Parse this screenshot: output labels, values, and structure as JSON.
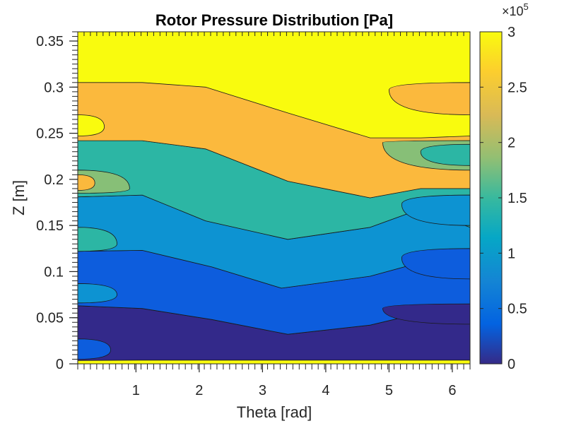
{
  "chart_data": {
    "type": "contour",
    "title": "Rotor Pressure Distribution [Pa]",
    "xlabel": "Theta [rad]",
    "ylabel": "Z [m]",
    "xlim": [
      0.08,
      6.28
    ],
    "ylim": [
      0,
      0.36
    ],
    "xticks": [
      1,
      2,
      3,
      4,
      5,
      6
    ],
    "xtick_labels": [
      "1",
      "2",
      "3",
      "4",
      "5",
      "6"
    ],
    "yticks": [
      0,
      0.05,
      0.1,
      0.15,
      0.2,
      0.25,
      0.3,
      0.35
    ],
    "ytick_labels": [
      "0",
      "0.05",
      "0.1",
      "0.15",
      "0.2",
      "0.25",
      "0.3",
      "0.35"
    ],
    "colorbar": {
      "range": [
        0,
        300000
      ],
      "ticks": [
        0,
        50000,
        100000,
        150000,
        200000,
        250000,
        300000
      ],
      "tick_labels": [
        "0",
        "0.5",
        "1",
        "1.5",
        "2",
        "2.5",
        "3"
      ],
      "exponent_label": "×10",
      "exponent_power": "5",
      "colormap": "parula"
    },
    "levels": [
      0,
      50000,
      100000,
      150000,
      200000,
      250000,
      300000
    ],
    "level_colors": [
      "#352a87",
      "#0f5cdd",
      "#1481d6",
      "#06a4ca",
      "#2eb7a4",
      "#87bf77",
      "#d1bb59",
      "#fec832",
      "#f9fb0e"
    ],
    "bands": [
      {
        "name": "band-0",
        "color": "#33298a",
        "points": [
          [
            0.08,
            0.0035
          ],
          [
            1.05,
            0.004
          ],
          [
            2,
            0.004
          ],
          [
            3,
            0.004
          ],
          [
            4,
            0.004
          ],
          [
            5,
            0.004
          ],
          [
            6.28,
            0.004
          ],
          [
            6.28,
            0.045
          ],
          [
            5.5,
            0.055
          ],
          [
            4.7,
            0.042
          ],
          [
            3.4,
            0.032
          ],
          [
            2.2,
            0.048
          ],
          [
            1.1,
            0.06
          ],
          [
            0.08,
            0.063
          ]
        ]
      },
      {
        "name": "band-1",
        "color": "#0d5ddd",
        "points": [
          [
            0.08,
            0.063
          ],
          [
            1.1,
            0.06
          ],
          [
            2.2,
            0.048
          ],
          [
            3.4,
            0.032
          ],
          [
            4.7,
            0.042
          ],
          [
            5.5,
            0.055
          ],
          [
            6.28,
            0.045
          ],
          [
            6.28,
            0.092
          ],
          [
            5.5,
            0.11
          ],
          [
            4.7,
            0.095
          ],
          [
            3.3,
            0.082
          ],
          [
            2.2,
            0.105
          ],
          [
            1.1,
            0.123
          ],
          [
            0.08,
            0.122
          ]
        ]
      },
      {
        "name": "band-2",
        "color": "#0d93d2",
        "points": [
          [
            0.08,
            0.122
          ],
          [
            1.1,
            0.123
          ],
          [
            2.2,
            0.105
          ],
          [
            3.3,
            0.082
          ],
          [
            4.7,
            0.095
          ],
          [
            5.5,
            0.11
          ],
          [
            6.28,
            0.092
          ],
          [
            6.28,
            0.148
          ],
          [
            5.5,
            0.168
          ],
          [
            4.7,
            0.148
          ],
          [
            3.4,
            0.135
          ],
          [
            2.1,
            0.155
          ],
          [
            1.1,
            0.183
          ],
          [
            0.08,
            0.181
          ]
        ]
      },
      {
        "name": "band-3",
        "color": "#2cb6a4",
        "points": [
          [
            0.08,
            0.181
          ],
          [
            1.1,
            0.183
          ],
          [
            2.1,
            0.155
          ],
          [
            3.4,
            0.135
          ],
          [
            4.7,
            0.148
          ],
          [
            5.5,
            0.168
          ],
          [
            6.28,
            0.148
          ],
          [
            6.28,
            0.19
          ],
          [
            5.5,
            0.19
          ],
          [
            4.7,
            0.18
          ],
          [
            3.4,
            0.198
          ],
          [
            2.1,
            0.233
          ],
          [
            1.1,
            0.242
          ],
          [
            0.08,
            0.242
          ]
        ]
      },
      {
        "name": "band-4",
        "color": "#fbb93d",
        "points": [
          [
            0.08,
            0.242
          ],
          [
            1.1,
            0.242
          ],
          [
            2.1,
            0.233
          ],
          [
            3.4,
            0.198
          ],
          [
            4.7,
            0.18
          ],
          [
            5.5,
            0.19
          ],
          [
            6.28,
            0.19
          ],
          [
            6.28,
            0.247
          ],
          [
            5.5,
            0.245
          ],
          [
            4.7,
            0.245
          ],
          [
            3.4,
            0.272
          ],
          [
            2.1,
            0.3
          ],
          [
            1.1,
            0.305
          ],
          [
            0.08,
            0.305
          ]
        ]
      }
    ]
  }
}
